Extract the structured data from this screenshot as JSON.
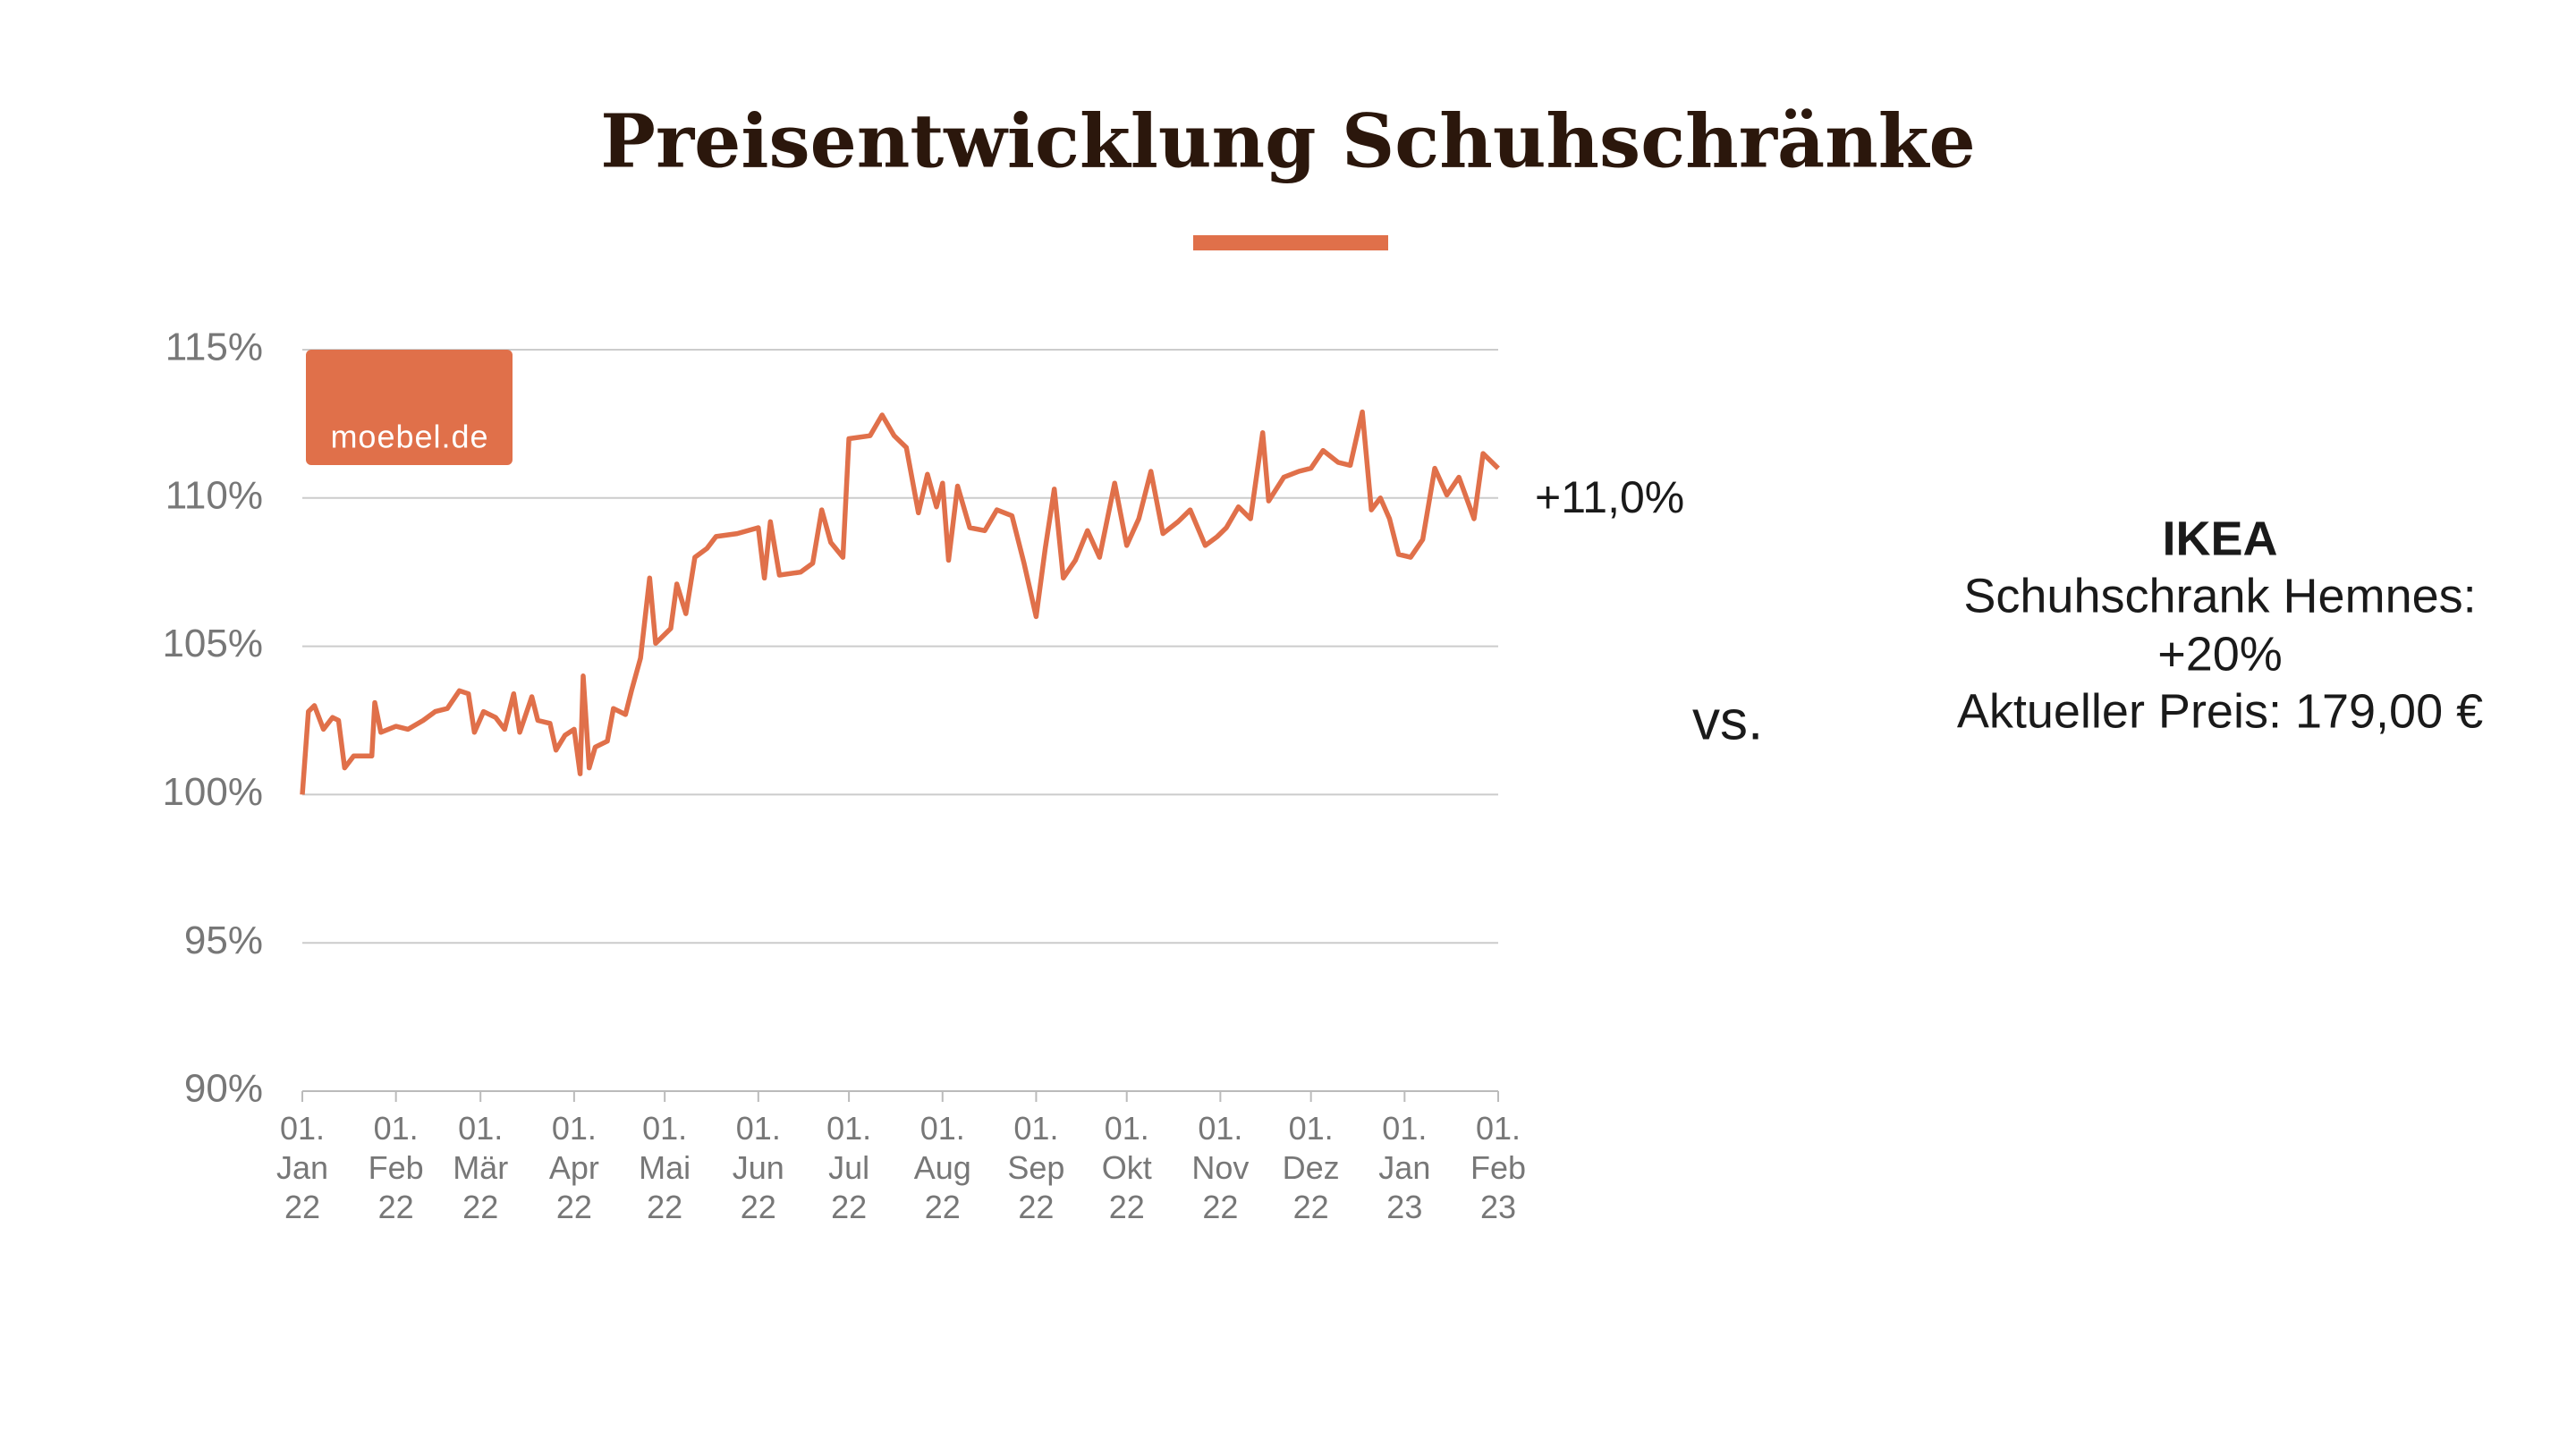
{
  "chart_data": {
    "type": "line",
    "title": "Preisentwicklung Schuhschränke",
    "logo": "moebel.de",
    "end_label": "+11,0%",
    "grid": true,
    "series": [
      {
        "color": "#e0704a",
        "x": [
          "2022-01-01",
          "2022-01-03",
          "2022-01-05",
          "2022-01-08",
          "2022-01-11",
          "2022-01-13",
          "2022-01-15",
          "2022-01-18",
          "2022-01-24",
          "2022-01-25",
          "2022-01-27",
          "2022-02-01",
          "2022-02-05",
          "2022-02-10",
          "2022-02-14",
          "2022-02-18",
          "2022-02-22",
          "2022-02-25",
          "2022-02-27",
          "2022-03-02",
          "2022-03-06",
          "2022-03-09",
          "2022-03-12",
          "2022-03-14",
          "2022-03-18",
          "2022-03-20",
          "2022-03-24",
          "2022-03-26",
          "2022-03-29",
          "2022-04-01",
          "2022-04-03",
          "2022-04-04",
          "2022-04-06",
          "2022-04-08",
          "2022-04-12",
          "2022-04-14",
          "2022-04-18",
          "2022-04-20",
          "2022-04-23",
          "2022-04-26",
          "2022-04-28",
          "2022-05-03",
          "2022-05-05",
          "2022-05-08",
          "2022-05-11",
          "2022-05-15",
          "2022-05-18",
          "2022-05-25",
          "2022-06-01",
          "2022-06-03",
          "2022-06-05",
          "2022-06-08",
          "2022-06-15",
          "2022-06-19",
          "2022-06-22",
          "2022-06-25",
          "2022-06-29",
          "2022-07-01",
          "2022-07-08",
          "2022-07-12",
          "2022-07-16",
          "2022-07-20",
          "2022-07-24",
          "2022-07-27",
          "2022-07-30",
          "2022-08-01",
          "2022-08-03",
          "2022-08-06",
          "2022-08-10",
          "2022-08-15",
          "2022-08-19",
          "2022-08-24",
          "2022-08-28",
          "2022-09-01",
          "2022-09-04",
          "2022-09-07",
          "2022-09-10",
          "2022-09-14",
          "2022-09-18",
          "2022-09-22",
          "2022-09-27",
          "2022-10-01",
          "2022-10-05",
          "2022-10-09",
          "2022-10-13",
          "2022-10-18",
          "2022-10-22",
          "2022-10-27",
          "2022-10-31",
          "2022-11-03",
          "2022-11-07",
          "2022-11-11",
          "2022-11-15",
          "2022-11-17",
          "2022-11-22",
          "2022-11-27",
          "2022-12-01",
          "2022-12-05",
          "2022-12-10",
          "2022-12-14",
          "2022-12-18",
          "2022-12-21",
          "2022-12-24",
          "2022-12-27",
          "2022-12-30",
          "2023-01-03",
          "2023-01-07",
          "2023-01-11",
          "2023-01-15",
          "2023-01-19",
          "2023-01-24",
          "2023-01-27",
          "2023-02-01"
        ],
        "values": [
          100.0,
          102.8,
          103.0,
          102.2,
          102.6,
          102.5,
          100.9,
          101.3,
          101.3,
          103.1,
          102.1,
          102.3,
          102.2,
          102.5,
          102.8,
          102.9,
          103.5,
          103.4,
          102.1,
          102.8,
          102.6,
          102.2,
          103.4,
          102.1,
          103.3,
          102.5,
          102.4,
          101.5,
          102.0,
          102.2,
          100.7,
          104.0,
          100.9,
          101.6,
          101.8,
          102.9,
          102.7,
          103.5,
          104.6,
          107.3,
          105.1,
          105.6,
          107.1,
          106.1,
          108.0,
          108.3,
          108.7,
          108.8,
          109.0,
          107.3,
          109.2,
          107.4,
          107.5,
          107.8,
          109.6,
          108.5,
          108.0,
          112.0,
          112.1,
          112.8,
          112.1,
          111.7,
          109.5,
          110.8,
          109.7,
          110.5,
          107.9,
          110.4,
          109.0,
          108.9,
          109.6,
          109.4,
          107.8,
          106.0,
          108.3,
          110.3,
          107.3,
          107.9,
          108.9,
          108.0,
          110.5,
          108.4,
          109.3,
          110.9,
          108.8,
          109.2,
          109.6,
          108.4,
          108.7,
          109.0,
          109.7,
          109.3,
          112.2,
          109.9,
          110.7,
          110.9,
          111.0,
          111.6,
          111.2,
          111.1,
          112.9,
          109.6,
          110.0,
          109.3,
          108.1,
          108.0,
          108.6,
          111.0,
          110.1,
          110.7,
          109.3,
          111.5,
          111.0
        ]
      }
    ],
    "xlim": [
      "2022-01-01",
      "2023-02-01"
    ],
    "xticks": [
      {
        "value": "2022-01-01",
        "label": "01. Jan 22"
      },
      {
        "value": "2022-02-01",
        "label": "01. Feb 22"
      },
      {
        "value": "2022-03-01",
        "label": "01. Mär 22"
      },
      {
        "value": "2022-04-01",
        "label": "01. Apr 22"
      },
      {
        "value": "2022-05-01",
        "label": "01. Mai 22"
      },
      {
        "value": "2022-06-01",
        "label": "01. Jun 22"
      },
      {
        "value": "2022-07-01",
        "label": "01. Jul 22"
      },
      {
        "value": "2022-08-01",
        "label": "01. Aug 22"
      },
      {
        "value": "2022-09-01",
        "label": "01. Sep 22"
      },
      {
        "value": "2022-10-01",
        "label": "01. Okt 22"
      },
      {
        "value": "2022-11-01",
        "label": "01. Nov 22"
      },
      {
        "value": "2022-12-01",
        "label": "01. Dez 22"
      },
      {
        "value": "2023-01-01",
        "label": "01. Jan 23"
      },
      {
        "value": "2023-02-01",
        "label": "01. Feb 23"
      }
    ],
    "ylim": [
      90,
      115
    ],
    "yticks": [
      {
        "value": 90,
        "label": "90%"
      },
      {
        "value": 95,
        "label": "95%"
      },
      {
        "value": 100,
        "label": "100%"
      },
      {
        "value": 105,
        "label": "105%"
      },
      {
        "value": 110,
        "label": "110%"
      },
      {
        "value": 115,
        "label": "115%"
      }
    ]
  },
  "comparison": {
    "separator": "vs.",
    "brand": "IKEA",
    "product": "Schuhschrank Hemnes:",
    "change": "+20%",
    "price": "Aktueller Preis: 179,00 €"
  }
}
